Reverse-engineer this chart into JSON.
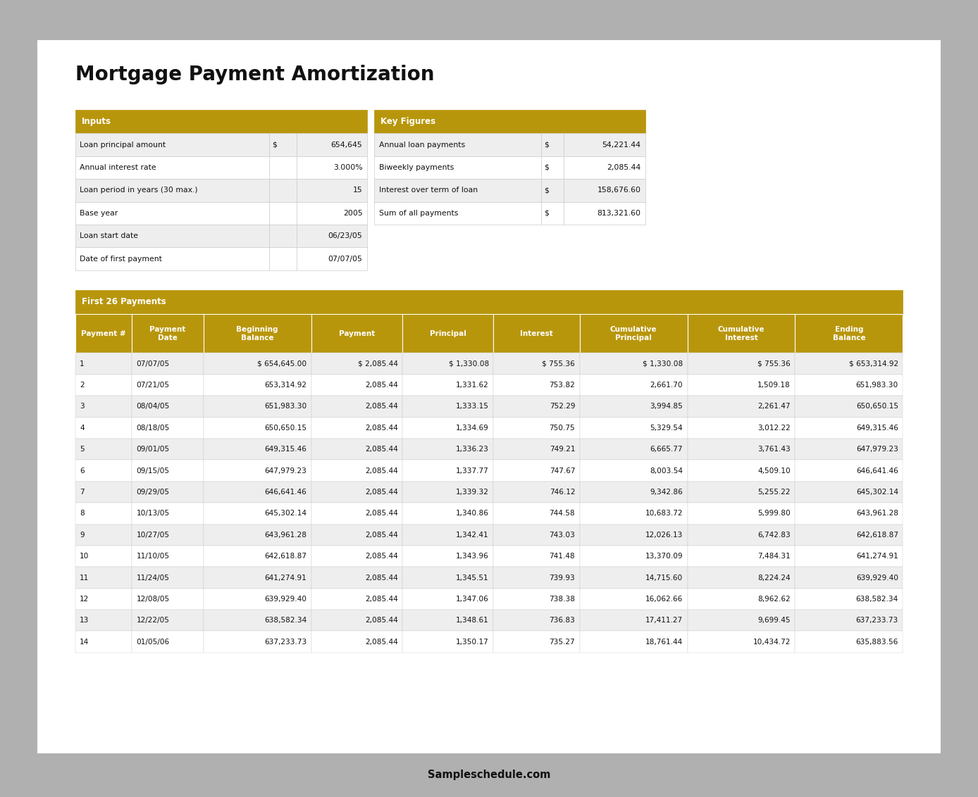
{
  "title": "Mortgage Payment Amortization",
  "bg_color": "#b0b0b0",
  "paper_color": "#ffffff",
  "header_color": "#b8960c",
  "header_text_color": "#ffffff",
  "row_alt_color": "#eeeeee",
  "row_color": "#ffffff",
  "inputs_header": "Inputs",
  "inputs": [
    [
      "Loan principal amount",
      "$",
      "654,645"
    ],
    [
      "Annual interest rate",
      "",
      "3.000%"
    ],
    [
      "Loan period in years (30 max.)",
      "",
      "15"
    ],
    [
      "Base year",
      "",
      "2005"
    ],
    [
      "Loan start date",
      "",
      "06/23/05"
    ],
    [
      "Date of first payment",
      "",
      "07/07/05"
    ]
  ],
  "key_header": "Key Figures",
  "key_figures": [
    [
      "Annual loan payments",
      "$",
      "54,221.44"
    ],
    [
      "Biweekly payments",
      "$",
      "2,085.44"
    ],
    [
      "Interest over term of loan",
      "$",
      "158,676.60"
    ],
    [
      "Sum of all payments",
      "$",
      "813,321.60"
    ]
  ],
  "section_label": "First 26 Payments",
  "col_headers": [
    "Payment #",
    "Payment\nDate",
    "Beginning\nBalance",
    "Payment",
    "Principal",
    "Interest",
    "Cumulative\nPrincipal",
    "Cumulative\nInterest",
    "Ending\nBalance"
  ],
  "rows": [
    [
      "1",
      "07/07/05",
      "$ 654,645.00",
      "$ 2,085.44",
      "$ 1,330.08",
      "$ 755.36",
      "$ 1,330.08",
      "$ 755.36",
      "$ 653,314.92"
    ],
    [
      "2",
      "07/21/05",
      "653,314.92",
      "2,085.44",
      "1,331.62",
      "753.82",
      "2,661.70",
      "1,509.18",
      "651,983.30"
    ],
    [
      "3",
      "08/04/05",
      "651,983.30",
      "2,085.44",
      "1,333.15",
      "752.29",
      "3,994.85",
      "2,261.47",
      "650,650.15"
    ],
    [
      "4",
      "08/18/05",
      "650,650.15",
      "2,085.44",
      "1,334.69",
      "750.75",
      "5,329.54",
      "3,012.22",
      "649,315.46"
    ],
    [
      "5",
      "09/01/05",
      "649,315.46",
      "2,085.44",
      "1,336.23",
      "749.21",
      "6,665.77",
      "3,761.43",
      "647,979.23"
    ],
    [
      "6",
      "09/15/05",
      "647,979.23",
      "2,085.44",
      "1,337.77",
      "747.67",
      "8,003.54",
      "4,509.10",
      "646,641.46"
    ],
    [
      "7",
      "09/29/05",
      "646,641.46",
      "2,085.44",
      "1,339.32",
      "746.12",
      "9,342.86",
      "5,255.22",
      "645,302.14"
    ],
    [
      "8",
      "10/13/05",
      "645,302.14",
      "2,085.44",
      "1,340.86",
      "744.58",
      "10,683.72",
      "5,999.80",
      "643,961.28"
    ],
    [
      "9",
      "10/27/05",
      "643,961.28",
      "2,085.44",
      "1,342.41",
      "743.03",
      "12,026.13",
      "6,742.83",
      "642,618.87"
    ],
    [
      "10",
      "11/10/05",
      "642,618.87",
      "2,085.44",
      "1,343.96",
      "741.48",
      "13,370.09",
      "7,484.31",
      "641,274.91"
    ],
    [
      "11",
      "11/24/05",
      "641,274.91",
      "2,085.44",
      "1,345.51",
      "739.93",
      "14,715.60",
      "8,224.24",
      "639,929.40"
    ],
    [
      "12",
      "12/08/05",
      "639,929.40",
      "2,085.44",
      "1,347.06",
      "738.38",
      "16,062.66",
      "8,962.62",
      "638,582.34"
    ],
    [
      "13",
      "12/22/05",
      "638,582.34",
      "2,085.44",
      "1,348.61",
      "736.83",
      "17,411.27",
      "9,699.45",
      "637,233.73"
    ],
    [
      "14",
      "01/05/06",
      "637,233.73",
      "2,085.44",
      "1,350.17",
      "735.27",
      "18,761.44",
      "10,434.72",
      "635,883.56"
    ]
  ],
  "footer": "Sampleschedule.com"
}
